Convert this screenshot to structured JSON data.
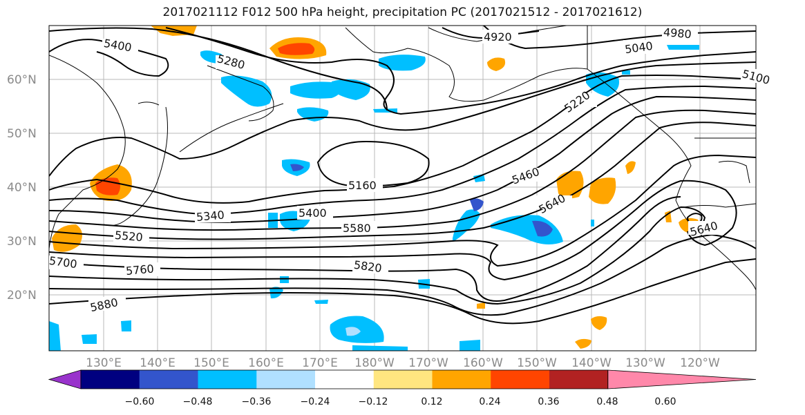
{
  "title": "2017021112 F012 500 hPa height, precipitation PC (2017021512 - 2017021612)",
  "map": {
    "lat_labels": [
      "60°N",
      "50°N",
      "40°N",
      "30°N",
      "20°N"
    ],
    "lon_labels": [
      "130°E",
      "140°E",
      "150°E",
      "160°E",
      "170°E",
      "180°W",
      "170°W",
      "160°W",
      "150°W",
      "140°W",
      "130°W",
      "120°W"
    ],
    "contour_labels": [
      "5400",
      "5280",
      "4920",
      "4980",
      "5040",
      "5220",
      "5100",
      "5160",
      "5460",
      "5340",
      "5400",
      "5580",
      "5640",
      "5520",
      "5700",
      "5760",
      "5820",
      "5880",
      "5640"
    ]
  },
  "colorbar": {
    "tick_labels": [
      "−0.60",
      "−0.48",
      "−0.36",
      "−0.24",
      "−0.12",
      "0.12",
      "0.24",
      "0.36",
      "0.48",
      "0.60"
    ],
    "colors": [
      "#9933cc",
      "#000080",
      "#3355cc",
      "#00bfff",
      "#b0e0ff",
      "#ffffff",
      "#ffe680",
      "#ffa500",
      "#ff4500",
      "#b22222",
      "#ff88aa"
    ]
  }
}
